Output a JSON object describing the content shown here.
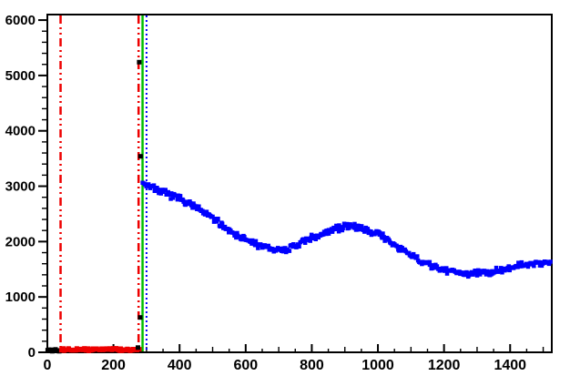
{
  "figure": {
    "background": "#ffffff",
    "frame_color": "#000000"
  },
  "chart_data": {
    "type": "scatter",
    "title": "",
    "xlabel": "",
    "ylabel": "",
    "xlim": [
      0,
      1526
    ],
    "ylim": [
      0,
      6100
    ],
    "grid": false,
    "legend": false,
    "x_axis": {
      "major_step": 200,
      "medium_step": 100,
      "minor_step": 50,
      "label_values": [
        0,
        200,
        400,
        600,
        800,
        1000,
        1200,
        1400
      ],
      "labels": [
        "0",
        "200",
        "400",
        "600",
        "800",
        "1000",
        "1200",
        "1400"
      ]
    },
    "y_axis": {
      "major_step": 1000,
      "minor_step": 200,
      "label_values": [
        0,
        1000,
        2000,
        3000,
        4000,
        5000,
        6000
      ],
      "labels": [
        "0",
        "1000",
        "2000",
        "3000",
        "4000",
        "5000",
        "6000"
      ]
    },
    "vlines": [
      {
        "name": "vline-red-lower",
        "x": 40,
        "color": "#ee0000",
        "style": "dashdotdot",
        "width": 2.5
      },
      {
        "name": "vline-red-upper",
        "x": 276,
        "color": "#ee0000",
        "style": "dashdotdot",
        "width": 2.5
      },
      {
        "name": "vline-green",
        "x": 288,
        "color": "#00bf00",
        "style": "solid",
        "width": 2.5
      },
      {
        "name": "vline-blue",
        "x": 300,
        "color": "#0000ff",
        "style": "dotted",
        "width": 2
      }
    ],
    "series": [
      {
        "name": "black-baseline-band",
        "color": "#000000",
        "marker": "square",
        "marker_px": 5,
        "mode": "band",
        "x_start": 1,
        "x_end": 40,
        "x_step": 3,
        "jitter": 18,
        "seed": 11,
        "trend": [
          [
            0,
            35
          ],
          [
            40,
            35
          ]
        ]
      },
      {
        "name": "red-fit-band",
        "color": "#ee0000",
        "marker": "square",
        "marker_px": 5,
        "mode": "band",
        "x_start": 42,
        "x_end": 277,
        "x_step": 3.5,
        "jitter": 22,
        "seed": 22,
        "trend": [
          [
            42,
            55
          ],
          [
            277,
            55
          ]
        ]
      },
      {
        "name": "blue-signal",
        "color": "#0000ff",
        "marker": "square",
        "marker_px": 4.5,
        "mode": "band",
        "x_start": 290,
        "x_end": 1522,
        "x_step": 2.8,
        "jitter": 46,
        "seed": 7,
        "trend": [
          [
            290,
            3060
          ],
          [
            310,
            3010
          ],
          [
            340,
            2920
          ],
          [
            370,
            2830
          ],
          [
            400,
            2780
          ],
          [
            430,
            2690
          ],
          [
            460,
            2570
          ],
          [
            490,
            2460
          ],
          [
            520,
            2340
          ],
          [
            550,
            2210
          ],
          [
            580,
            2100
          ],
          [
            610,
            2000
          ],
          [
            640,
            1930
          ],
          [
            670,
            1870
          ],
          [
            700,
            1850
          ],
          [
            730,
            1870
          ],
          [
            760,
            1940
          ],
          [
            790,
            2030
          ],
          [
            820,
            2120
          ],
          [
            850,
            2190
          ],
          [
            880,
            2240
          ],
          [
            910,
            2270
          ],
          [
            940,
            2265
          ],
          [
            970,
            2210
          ],
          [
            1000,
            2140
          ],
          [
            1030,
            2030
          ],
          [
            1060,
            1900
          ],
          [
            1090,
            1780
          ],
          [
            1120,
            1680
          ],
          [
            1150,
            1590
          ],
          [
            1180,
            1520
          ],
          [
            1210,
            1480
          ],
          [
            1240,
            1450
          ],
          [
            1270,
            1430
          ],
          [
            1300,
            1425
          ],
          [
            1330,
            1440
          ],
          [
            1360,
            1475
          ],
          [
            1390,
            1520
          ],
          [
            1420,
            1555
          ],
          [
            1450,
            1580
          ],
          [
            1480,
            1605
          ],
          [
            1505,
            1625
          ],
          [
            1522,
            1640
          ]
        ]
      },
      {
        "name": "black-step-points",
        "color": "#000000",
        "marker": "square",
        "marker_px": 5,
        "mode": "points",
        "points": [
          [
            274,
            85
          ],
          [
            281,
            630
          ],
          [
            282,
            3540
          ],
          [
            278,
            5240
          ]
        ]
      }
    ]
  }
}
